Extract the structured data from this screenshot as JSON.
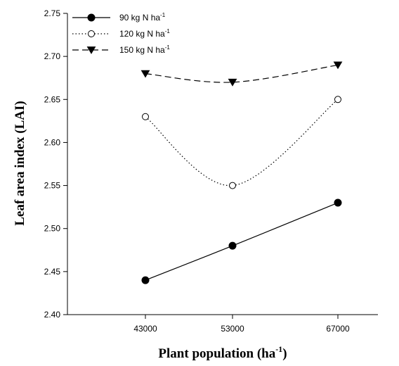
{
  "chart_data": {
    "type": "line",
    "x": [
      43000,
      53000,
      67000
    ],
    "x_tick_labels": [
      "43000",
      "53000",
      "67000"
    ],
    "series": [
      {
        "name": "90 kg N ha",
        "name_sup": "-1",
        "values": [
          2.44,
          2.48,
          2.53
        ],
        "marker": "filled-circle",
        "line_style": "solid"
      },
      {
        "name": "120 kg N ha",
        "name_sup": "-1",
        "values": [
          2.63,
          2.55,
          2.65
        ],
        "marker": "open-circle",
        "line_style": "dotted"
      },
      {
        "name": "150 kg N ha",
        "name_sup": "-1",
        "values": [
          2.68,
          2.67,
          2.69
        ],
        "marker": "filled-triangle-down",
        "line_style": "dashed"
      }
    ],
    "y_ticks": [
      "2.40",
      "2.45",
      "2.50",
      "2.55",
      "2.60",
      "2.65",
      "2.70",
      "2.75"
    ],
    "ylim": [
      2.4,
      2.75
    ],
    "xlabel": "Plant population (ha",
    "xlabel_sup": "-1",
    "xlabel_suffix": ")",
    "ylabel": "Leaf area index (LAI)",
    "legend_position": "top-left",
    "grid": false,
    "colors": {
      "line": "#000000",
      "background": "#ffffff"
    }
  }
}
